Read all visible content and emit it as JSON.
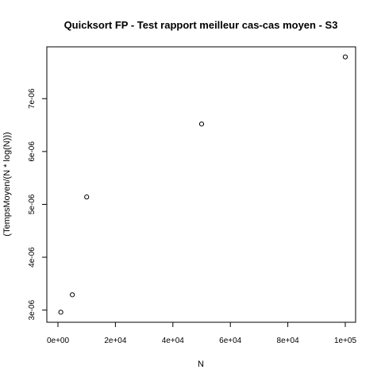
{
  "chart_data": {
    "type": "scatter",
    "title": "Quicksort FP - Test rapport meilleur cas-cas moyen - S3",
    "xlabel": "N",
    "ylabel": "(TempsMoyen/(N * log(N)))",
    "xlim": [
      0,
      100000
    ],
    "ylim": [
      2.95e-06,
      7.8e-06
    ],
    "x_ticks": [
      0,
      20000,
      40000,
      60000,
      80000,
      100000
    ],
    "x_tick_labels": [
      "0e+00",
      "2e+04",
      "4e+04",
      "6e+04",
      "8e+04",
      "1e+05"
    ],
    "y_ticks": [
      3e-06,
      4e-06,
      5e-06,
      6e-06,
      7e-06
    ],
    "y_tick_labels": [
      "3e-06",
      "4e-06",
      "5e-06",
      "6e-06",
      "7e-06"
    ],
    "grid": false,
    "legend": "none",
    "marker": "open-circle",
    "color": "#000000",
    "points": [
      {
        "x": 1000,
        "y": 2.96e-06
      },
      {
        "x": 5000,
        "y": 3.29e-06
      },
      {
        "x": 10000,
        "y": 5.14e-06
      },
      {
        "x": 50000,
        "y": 6.52e-06
      },
      {
        "x": 100000,
        "y": 7.79e-06
      }
    ]
  }
}
